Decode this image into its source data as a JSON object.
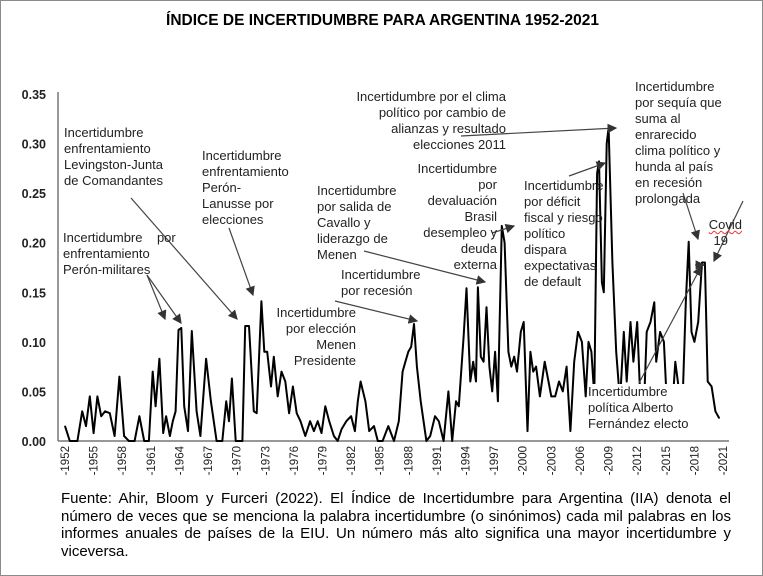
{
  "chart_data": {
    "type": "line",
    "title": "ÍNDICE DE INCERTIDUMBRE PARA ARGENTINA 1952-2021",
    "xlabel": "",
    "ylabel": "",
    "ylim": [
      0,
      0.35
    ],
    "xlim": [
      1952,
      2021
    ],
    "grid": false,
    "legend": "none",
    "line_color": "#000000",
    "yticks": [
      "0.00",
      "0.05",
      "0.10",
      "0.15",
      "0.20",
      "0.25",
      "0.30",
      "0.35"
    ],
    "xticks": [
      "-1952",
      "-1955",
      "-1958",
      "-1961",
      "-1964",
      "-1967",
      "-1970",
      "-1973",
      "-1976",
      "-1979",
      "-1982",
      "-1985",
      "-1988",
      "-1991",
      "-1994",
      "-1997",
      "-2000",
      "-2003",
      "-2006",
      "-2009",
      "-2012",
      "-2015",
      "-2018",
      "-2021"
    ],
    "points": [
      [
        1952.0,
        0.015
      ],
      [
        1952.5,
        0.0
      ],
      [
        1953.3,
        0.0
      ],
      [
        1953.8,
        0.03
      ],
      [
        1954.2,
        0.015
      ],
      [
        1954.6,
        0.045
      ],
      [
        1955.0,
        0.008
      ],
      [
        1955.4,
        0.045
      ],
      [
        1955.8,
        0.025
      ],
      [
        1956.2,
        0.03
      ],
      [
        1956.7,
        0.028
      ],
      [
        1957.2,
        0.005
      ],
      [
        1957.7,
        0.065
      ],
      [
        1958.2,
        0.005
      ],
      [
        1958.7,
        0.0
      ],
      [
        1959.3,
        0.0
      ],
      [
        1959.8,
        0.025
      ],
      [
        1960.3,
        0.0
      ],
      [
        1960.8,
        0.0
      ],
      [
        1961.2,
        0.07
      ],
      [
        1961.5,
        0.035
      ],
      [
        1961.9,
        0.083
      ],
      [
        1962.3,
        0.008
      ],
      [
        1962.6,
        0.025
      ],
      [
        1963.0,
        0.005
      ],
      [
        1963.3,
        0.02
      ],
      [
        1963.6,
        0.03
      ],
      [
        1963.9,
        0.112
      ],
      [
        1964.2,
        0.114
      ],
      [
        1964.5,
        0.035
      ],
      [
        1964.9,
        0.01
      ],
      [
        1965.3,
        0.111
      ],
      [
        1965.8,
        0.03
      ],
      [
        1966.2,
        0.005
      ],
      [
        1966.8,
        0.083
      ],
      [
        1967.3,
        0.04
      ],
      [
        1967.9,
        0.0
      ],
      [
        1968.5,
        0.0
      ],
      [
        1968.9,
        0.04
      ],
      [
        1969.2,
        0.02
      ],
      [
        1969.5,
        0.063
      ],
      [
        1969.9,
        0.0
      ],
      [
        1970.6,
        0.0
      ],
      [
        1970.9,
        0.116
      ],
      [
        1971.3,
        0.116
      ],
      [
        1971.8,
        0.03
      ],
      [
        1972.1,
        0.028
      ],
      [
        1972.6,
        0.141
      ],
      [
        1972.9,
        0.09
      ],
      [
        1973.2,
        0.09
      ],
      [
        1973.6,
        0.055
      ],
      [
        1973.9,
        0.085
      ],
      [
        1974.3,
        0.045
      ],
      [
        1974.7,
        0.07
      ],
      [
        1975.1,
        0.06
      ],
      [
        1975.5,
        0.028
      ],
      [
        1975.9,
        0.055
      ],
      [
        1976.3,
        0.028
      ],
      [
        1976.7,
        0.02
      ],
      [
        1977.2,
        0.005
      ],
      [
        1977.7,
        0.02
      ],
      [
        1978.1,
        0.01
      ],
      [
        1978.5,
        0.02
      ],
      [
        1978.9,
        0.008
      ],
      [
        1979.3,
        0.035
      ],
      [
        1979.7,
        0.02
      ],
      [
        1980.2,
        0.005
      ],
      [
        1980.6,
        0.0
      ],
      [
        1981.0,
        0.012
      ],
      [
        1981.5,
        0.02
      ],
      [
        1982.0,
        0.025
      ],
      [
        1982.4,
        0.01
      ],
      [
        1982.7,
        0.04
      ],
      [
        1983.0,
        0.06
      ],
      [
        1983.5,
        0.04
      ],
      [
        1983.9,
        0.01
      ],
      [
        1984.4,
        0.015
      ],
      [
        1984.8,
        0.0
      ],
      [
        1985.3,
        0.0
      ],
      [
        1985.9,
        0.015
      ],
      [
        1986.5,
        0.0
      ],
      [
        1987.0,
        0.02
      ],
      [
        1987.4,
        0.07
      ],
      [
        1987.7,
        0.08
      ],
      [
        1988.0,
        0.09
      ],
      [
        1988.3,
        0.095
      ],
      [
        1988.6,
        0.118
      ],
      [
        1988.9,
        0.075
      ],
      [
        1989.3,
        0.04
      ],
      [
        1989.9,
        0.0
      ],
      [
        1990.3,
        0.005
      ],
      [
        1990.8,
        0.025
      ],
      [
        1991.2,
        0.02
      ],
      [
        1991.7,
        0.0
      ],
      [
        1992.2,
        0.05
      ],
      [
        1992.6,
        0.0
      ],
      [
        1993.0,
        0.04
      ],
      [
        1993.3,
        0.035
      ],
      [
        1993.8,
        0.105
      ],
      [
        1994.1,
        0.154
      ],
      [
        1994.5,
        0.06
      ],
      [
        1994.8,
        0.08
      ],
      [
        1995.1,
        0.06
      ],
      [
        1995.3,
        0.155
      ],
      [
        1995.6,
        0.085
      ],
      [
        1995.9,
        0.08
      ],
      [
        1996.2,
        0.135
      ],
      [
        1996.5,
        0.075
      ],
      [
        1996.8,
        0.05
      ],
      [
        1997.1,
        0.09
      ],
      [
        1997.4,
        0.04
      ],
      [
        1997.8,
        0.217
      ],
      [
        1998.1,
        0.2
      ],
      [
        1998.5,
        0.09
      ],
      [
        1998.8,
        0.075
      ],
      [
        1999.1,
        0.085
      ],
      [
        1999.4,
        0.07
      ],
      [
        1999.8,
        0.11
      ],
      [
        2000.1,
        0.12
      ],
      [
        2000.5,
        0.01
      ],
      [
        2000.8,
        0.09
      ],
      [
        2001.1,
        0.07
      ],
      [
        2001.4,
        0.075
      ],
      [
        2001.8,
        0.045
      ],
      [
        2002.3,
        0.08
      ],
      [
        2002.7,
        0.06
      ],
      [
        2003.0,
        0.045
      ],
      [
        2003.4,
        0.045
      ],
      [
        2003.8,
        0.06
      ],
      [
        2004.2,
        0.05
      ],
      [
        2004.6,
        0.075
      ],
      [
        2005.0,
        0.01
      ],
      [
        2005.4,
        0.08
      ],
      [
        2005.8,
        0.11
      ],
      [
        2006.2,
        0.1
      ],
      [
        2006.6,
        0.045
      ],
      [
        2006.9,
        0.1
      ],
      [
        2007.2,
        0.09
      ],
      [
        2007.5,
        0.045
      ],
      [
        2007.8,
        0.27
      ],
      [
        2008.0,
        0.282
      ],
      [
        2008.3,
        0.16
      ],
      [
        2008.5,
        0.15
      ],
      [
        2008.8,
        0.3
      ],
      [
        2009.0,
        0.316
      ],
      [
        2009.4,
        0.18
      ],
      [
        2009.8,
        0.09
      ],
      [
        2010.2,
        0.04
      ],
      [
        2010.6,
        0.11
      ],
      [
        2010.9,
        0.06
      ],
      [
        2011.3,
        0.12
      ],
      [
        2011.6,
        0.08
      ],
      [
        2012.0,
        0.12
      ],
      [
        2012.3,
        0.05
      ],
      [
        2012.7,
        0.03
      ],
      [
        2013.0,
        0.11
      ],
      [
        2013.4,
        0.12
      ],
      [
        2013.8,
        0.14
      ],
      [
        2014.0,
        0.08
      ],
      [
        2014.4,
        0.11
      ],
      [
        2014.8,
        0.1
      ],
      [
        2015.2,
        0.02
      ],
      [
        2015.6,
        0.02
      ],
      [
        2016.0,
        0.08
      ],
      [
        2016.4,
        0.05
      ],
      [
        2016.8,
        0.05
      ],
      [
        2017.1,
        0.14
      ],
      [
        2017.4,
        0.201
      ],
      [
        2017.7,
        0.11
      ],
      [
        2018.0,
        0.1
      ],
      [
        2018.4,
        0.12
      ],
      [
        2018.8,
        0.18
      ],
      [
        2019.1,
        0.18
      ],
      [
        2019.4,
        0.06
      ],
      [
        2019.8,
        0.055
      ],
      [
        2020.2,
        0.03
      ],
      [
        2020.6,
        0.023
      ]
    ]
  },
  "annotations": {
    "peron_militares": [
      "Incertidumbre",
      "por",
      "enfrentamiento",
      "Perón-militares"
    ],
    "levingston": [
      "Incertidumbre",
      "enfrentamiento",
      "Levingston-Junta",
      "de Comandantes"
    ],
    "lanusse": [
      "Incertidumbre",
      "enfrentamiento",
      "Perón-",
      "Lanusse por",
      "elecciones"
    ],
    "menem_eleccion": [
      "Incertidumbre",
      "por elección",
      "Menen",
      "Presidente"
    ],
    "cavallo": [
      "Incertidumbre",
      "por salida de",
      "Cavallo y",
      "liderazgo de",
      "Menen"
    ],
    "recesion": [
      "Incertidumbre",
      "por recesión"
    ],
    "brasil": [
      "Incertidumbre",
      "por",
      "devaluación",
      "Brasil",
      "desempleo y",
      "deuda",
      "externa"
    ],
    "clima2011": [
      "Incertidumbre por el clima",
      "político por cambio de",
      "alianzas y resultado",
      "elecciones 2011"
    ],
    "deficit": [
      "Incertidumbre",
      "por déficit",
      "fiscal y riesgo",
      "político",
      "dispara",
      "expectativas",
      "de default"
    ],
    "sequia": [
      "Incertidumbre",
      "por sequía que",
      "suma al",
      "enrarecido",
      "clima político y",
      "hunda al país",
      "en recesión",
      "prolongada"
    ],
    "covid": [
      "Covid",
      "19"
    ],
    "fernandez": [
      "Incertidumbre",
      "política Alberto",
      "Fernández electo"
    ]
  },
  "caption": "Fuente: Ahir, Bloom y Furceri (2022). El Índice de Incertidumbre para Argentina (IIA) denota el número de veces que se menciona la palabra incertidumbre (o sinónimos) cada mil palabras en los informes anuales de países de la EIU. Un número más alto significa una mayor incertidumbre y viceversa."
}
